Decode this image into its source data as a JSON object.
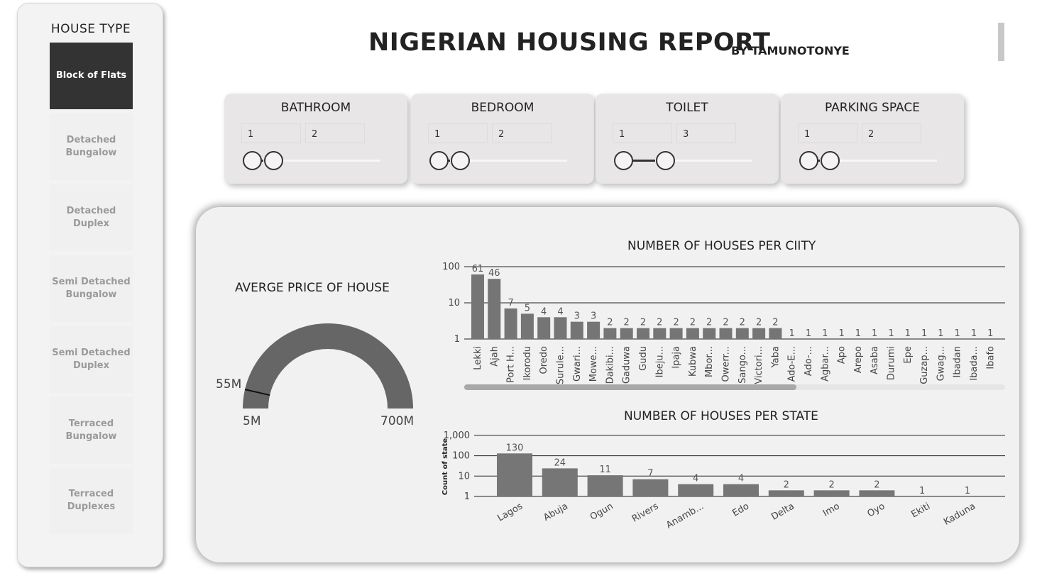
{
  "header": {
    "title": "NIGERIAN HOUSING REPORT",
    "subtitle": "BY TAMUNOTONYE"
  },
  "sidebar": {
    "title": "HOUSE TYPE",
    "items": [
      {
        "label": "Block of Flats",
        "selected": true
      },
      {
        "label": "Detached Bungalow",
        "selected": false
      },
      {
        "label": "Detached Duplex",
        "selected": false
      },
      {
        "label": "Semi Detached Bungalow",
        "selected": false
      },
      {
        "label": "Semi Detached Duplex",
        "selected": false
      },
      {
        "label": "Terraced Bungalow",
        "selected": false
      },
      {
        "label": "Terraced Duplexes",
        "selected": false
      }
    ]
  },
  "slicers": [
    {
      "title": "BATHROOM",
      "min": "1",
      "max": "2",
      "range_fraction": [
        0,
        0.08
      ]
    },
    {
      "title": "BEDROOM",
      "min": "1",
      "max": "2",
      "range_fraction": [
        0,
        0.08
      ]
    },
    {
      "title": "TOILET",
      "min": "1",
      "max": "3",
      "range_fraction": [
        0,
        0.23
      ]
    },
    {
      "title": "PARKING SPACE",
      "min": "1",
      "max": "2",
      "range_fraction": [
        0,
        0.08
      ]
    }
  ],
  "gauge": {
    "title": "AVERGE PRICE OF HOUSE",
    "min_label": "5M",
    "max_label": "700M",
    "value_label": "55M",
    "min": 5,
    "max": 700,
    "value": 55,
    "fill_color": "#666666"
  },
  "chart_data": [
    {
      "type": "bar",
      "title": "NUMBER OF HOUSES PER CIITY",
      "scale": "log",
      "yticks": [
        "1",
        "10",
        "100"
      ],
      "categories": [
        "Lekki",
        "Ajah",
        "Port H...",
        "Ikorodu",
        "Oredo",
        "Surule...",
        "Gwari...",
        "Mowe...",
        "Dakibi...",
        "Gaduwa",
        "Gudu",
        "Ibeju...",
        "Ipaja",
        "Kubwa",
        "Mbor...",
        "Owerr...",
        "Sango...",
        "Victori...",
        "Yaba",
        "Ado-E...",
        "Ado-...",
        "Agbar...",
        "Apo",
        "Arepo",
        "Asaba",
        "Durumi",
        "Epe",
        "Guzap...",
        "Gwag...",
        "Ibadan",
        "Ibada...",
        "Ibafo"
      ],
      "values": [
        61,
        46,
        7,
        5,
        4,
        4,
        3,
        3,
        2,
        2,
        2,
        2,
        2,
        2,
        2,
        2,
        2,
        2,
        2,
        1,
        1,
        1,
        1,
        1,
        1,
        1,
        1,
        1,
        1,
        1,
        1,
        1
      ],
      "bar_color": "#757575"
    },
    {
      "type": "bar",
      "title": "NUMBER OF HOUSES PER STATE",
      "ylabel": "Count of state",
      "scale": "log",
      "yticks": [
        "1",
        "10",
        "100",
        "1,000"
      ],
      "categories": [
        "Lagos",
        "Abuja",
        "Ogun",
        "Rivers",
        "Anamb...",
        "Edo",
        "Delta",
        "Imo",
        "Oyo",
        "Ekiti",
        "Kaduna"
      ],
      "values": [
        130,
        24,
        11,
        7,
        4,
        4,
        2,
        2,
        2,
        1,
        1
      ],
      "bar_color": "#767676"
    }
  ]
}
